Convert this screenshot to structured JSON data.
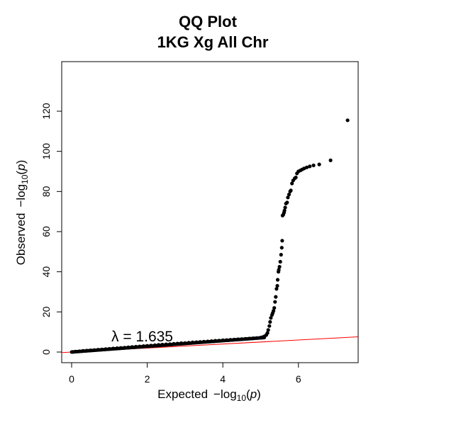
{
  "chart_data": {
    "type": "scatter",
    "title": "QQ Plot",
    "subtitle": "1KG Xg All Chr",
    "xlabel": "Expected",
    "ylabel": "Observed",
    "xlim": [
      0,
      7.35
    ],
    "ylim": [
      0,
      120
    ],
    "xticks": [
      0,
      2,
      4,
      6
    ],
    "yticks": [
      0,
      20,
      40,
      60,
      80,
      100,
      120
    ],
    "axis_unit_label": "log10(p)",
    "annotation": "λ = 1.635",
    "reference_line": {
      "slope": 1.0,
      "intercept": 0,
      "color": "#ff0000"
    },
    "point_color": "#000000",
    "series": [
      {
        "x": [
          0.02,
          0.1,
          0.2,
          0.3,
          0.4,
          0.5,
          0.6,
          0.7,
          0.8,
          0.9,
          1.0,
          1.1,
          1.2,
          1.3,
          1.4,
          1.5,
          1.6,
          1.7,
          1.8,
          1.9,
          2.0,
          2.1,
          2.2,
          2.3,
          2.4,
          2.5,
          2.6,
          2.7,
          2.8,
          2.9,
          3.0,
          3.1,
          3.2,
          3.3,
          3.4,
          3.5,
          3.6,
          3.7,
          3.8,
          3.9,
          4.0,
          4.1,
          4.2,
          4.3,
          4.4,
          4.5,
          4.6,
          4.7,
          4.8,
          4.9,
          5.0,
          5.05,
          5.1,
          5.15,
          5.18,
          5.2,
          5.23,
          5.25,
          5.27,
          5.3,
          5.32,
          5.34,
          5.36,
          5.38,
          5.4,
          5.42,
          5.44,
          5.45,
          5.47,
          5.48,
          5.5,
          5.52,
          5.54,
          5.56,
          5.57,
          5.58,
          5.6,
          5.62,
          5.63,
          5.65,
          5.67,
          5.7,
          5.72,
          5.75,
          5.78,
          5.8,
          5.83,
          5.86,
          5.9,
          5.93,
          5.96,
          6.0,
          6.05,
          6.1,
          6.15,
          6.22,
          6.3,
          6.4,
          6.55,
          6.85,
          7.3
        ],
        "y": [
          0.04,
          0.2,
          0.35,
          0.55,
          0.7,
          0.85,
          1.0,
          1.15,
          1.3,
          1.45,
          1.6,
          1.75,
          1.9,
          2.05,
          2.2,
          2.35,
          2.5,
          2.65,
          2.8,
          2.95,
          3.1,
          3.25,
          3.4,
          3.55,
          3.7,
          3.85,
          3.95,
          4.1,
          4.25,
          4.4,
          4.5,
          4.65,
          4.8,
          4.9,
          5.05,
          5.2,
          5.3,
          5.45,
          5.6,
          5.7,
          5.85,
          5.95,
          6.1,
          6.2,
          6.35,
          6.45,
          6.6,
          6.7,
          6.85,
          7.0,
          7.2,
          7.4,
          7.8,
          8.5,
          9.5,
          11.0,
          13.0,
          15.0,
          17.0,
          18.5,
          19.5,
          20.5,
          22.0,
          25.0,
          27.5,
          31.5,
          33.0,
          36.0,
          40.0,
          41.0,
          42.5,
          45.0,
          48.5,
          52.0,
          55.5,
          68.0,
          68.5,
          69.5,
          70.5,
          72.0,
          74.0,
          74.5,
          77.0,
          78.5,
          80.0,
          80.5,
          84.0,
          85.5,
          86.5,
          87.0,
          89.0,
          90.0,
          90.5,
          91.0,
          91.5,
          92.0,
          92.5,
          93.0,
          93.5,
          95.5,
          115.5
        ]
      }
    ]
  }
}
